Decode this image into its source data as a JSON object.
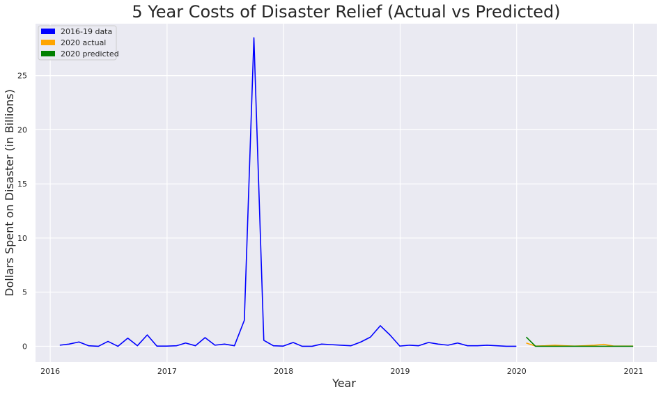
{
  "chart_data": {
    "type": "line",
    "title": "5 Year Costs of Disaster Relief (Actual vs Predicted)",
    "xlabel": "Year",
    "ylabel": "Dollars Spent on Disaster (in Billions)",
    "xlim": [
      "2015-11-16",
      "2021-03-15"
    ],
    "ylim": [
      -1.45,
      29.8
    ],
    "x_ticks": [
      "2016",
      "2017",
      "2018",
      "2019",
      "2020",
      "2021"
    ],
    "y_ticks": [
      0,
      5,
      10,
      15,
      20,
      25
    ],
    "grid": true,
    "legend_position": "top-left",
    "colors": {
      "background": "#eaeaf2",
      "grid": "#ffffff",
      "text": "#262626"
    },
    "series": [
      {
        "name": "2016-19 data",
        "color": "#0000ff",
        "x": [
          "2016-01-31",
          "2016-02-29",
          "2016-03-31",
          "2016-04-30",
          "2016-05-31",
          "2016-06-30",
          "2016-07-31",
          "2016-08-31",
          "2016-09-30",
          "2016-10-31",
          "2016-11-30",
          "2016-12-31",
          "2017-01-31",
          "2017-02-28",
          "2017-03-31",
          "2017-04-30",
          "2017-05-31",
          "2017-06-30",
          "2017-07-31",
          "2017-08-31",
          "2017-09-30",
          "2017-10-31",
          "2017-11-30",
          "2017-12-31",
          "2018-01-31",
          "2018-02-28",
          "2018-03-31",
          "2018-04-30",
          "2018-05-31",
          "2018-06-30",
          "2018-07-31",
          "2018-08-31",
          "2018-09-30",
          "2018-10-31",
          "2018-11-30",
          "2018-12-31",
          "2019-01-31",
          "2019-02-28",
          "2019-03-31",
          "2019-04-30",
          "2019-05-31",
          "2019-06-30",
          "2019-07-31",
          "2019-08-31",
          "2019-09-30",
          "2019-10-31",
          "2019-11-30",
          "2019-12-31"
        ],
        "values": [
          0.1,
          0.2,
          0.4,
          0.05,
          0.0,
          0.45,
          0.0,
          0.75,
          0.05,
          1.05,
          0.02,
          0.02,
          0.05,
          0.3,
          0.05,
          0.8,
          0.1,
          0.2,
          0.05,
          2.4,
          28.5,
          0.55,
          0.05,
          0.02,
          0.35,
          0.0,
          0.0,
          0.2,
          0.15,
          0.1,
          0.05,
          0.4,
          0.85,
          1.9,
          1.05,
          0.02,
          0.1,
          0.05,
          0.35,
          0.2,
          0.1,
          0.3,
          0.05,
          0.05,
          0.1,
          0.05,
          0.0,
          0.0
        ]
      },
      {
        "name": "2020 actual",
        "color": "#ffa500",
        "x": [
          "2020-01-31",
          "2020-02-29",
          "2020-03-31",
          "2020-04-30",
          "2020-05-31",
          "2020-06-30",
          "2020-07-31",
          "2020-08-31",
          "2020-09-30",
          "2020-10-31",
          "2020-11-30",
          "2020-12-31"
        ],
        "values": [
          0.3,
          0.02,
          0.05,
          0.1,
          0.05,
          0.02,
          0.05,
          0.1,
          0.18,
          0.02,
          0.02,
          0.02
        ]
      },
      {
        "name": "2020 predicted",
        "color": "#008000",
        "x": [
          "2020-01-31",
          "2020-02-29",
          "2020-03-31",
          "2020-04-30",
          "2020-05-31",
          "2020-06-30",
          "2020-07-31",
          "2020-08-31",
          "2020-09-30",
          "2020-10-31",
          "2020-11-30",
          "2020-12-31"
        ],
        "values": [
          0.85,
          0.0,
          0.0,
          0.0,
          0.0,
          0.0,
          0.0,
          0.0,
          0.0,
          0.0,
          0.0,
          0.0
        ]
      }
    ]
  }
}
